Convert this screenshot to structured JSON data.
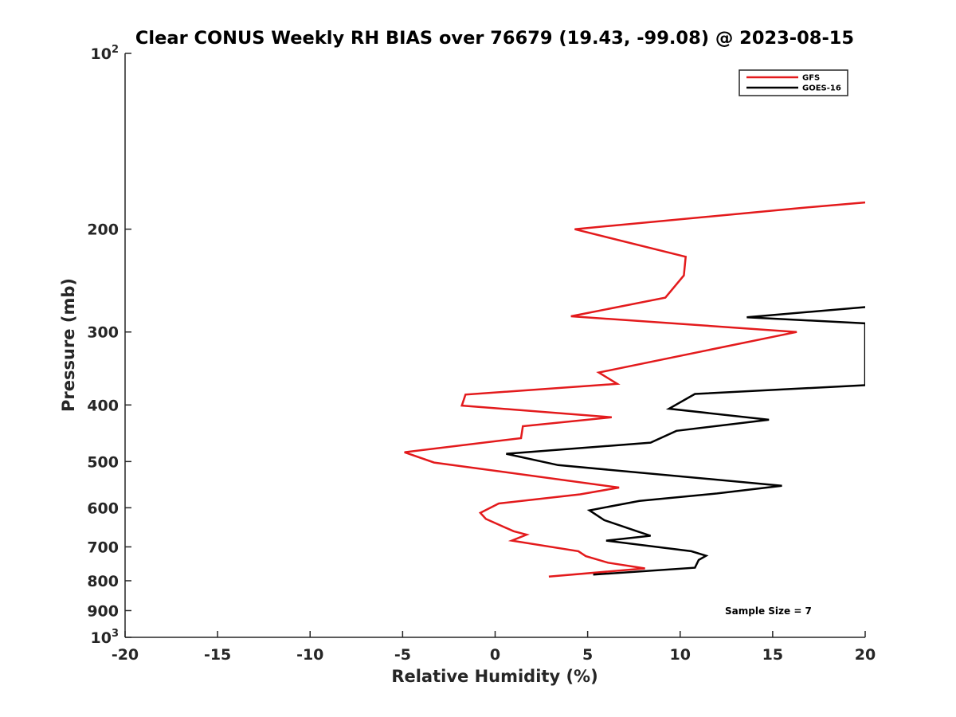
{
  "chart_data": {
    "type": "line",
    "title": "Clear CONUS Weekly RH BIAS over 76679 (19.43, -99.08) @ 2023-08-15",
    "xlabel": "Relative Humidity (%)",
    "ylabel": "Pressure (mb)",
    "xlim": [
      -20,
      20
    ],
    "ylim": [
      100,
      1000
    ],
    "y_scale": "log",
    "y_reversed": true,
    "grid": false,
    "legend_position": "top-right",
    "x_ticks": [
      "-20",
      "-15",
      "-10",
      "-5",
      "0",
      "5",
      "10",
      "15",
      "20"
    ],
    "y_ticks": [
      {
        "value": 100,
        "base": "10",
        "exp": "2"
      },
      {
        "value": 200,
        "label": "200"
      },
      {
        "value": 300,
        "label": "300"
      },
      {
        "value": 400,
        "label": "400"
      },
      {
        "value": 500,
        "label": "500"
      },
      {
        "value": 600,
        "label": "600"
      },
      {
        "value": 700,
        "label": "700"
      },
      {
        "value": 800,
        "label": "800"
      },
      {
        "value": 900,
        "label": "900"
      },
      {
        "value": 1000,
        "base": "10",
        "exp": "3"
      }
    ],
    "annotation": "Sample Size = 7",
    "series": [
      {
        "name": "GFS",
        "color": "#e31a1c",
        "points": [
          [
            20,
            180
          ],
          [
            16.5,
            184
          ],
          [
            4.3,
            200
          ],
          [
            10.3,
            223
          ],
          [
            10.2,
            240
          ],
          [
            9.2,
            262
          ],
          [
            4.1,
            282
          ],
          [
            16.3,
            300
          ],
          [
            5.6,
            352
          ],
          [
            6.6,
            368
          ],
          [
            -1.6,
            384
          ],
          [
            -1.8,
            401
          ],
          [
            6.3,
            420
          ],
          [
            1.5,
            435
          ],
          [
            1.4,
            456
          ],
          [
            -4.9,
            482
          ],
          [
            -3.3,
            502
          ],
          [
            6.7,
            554
          ],
          [
            4.6,
            569
          ],
          [
            0.2,
            590
          ],
          [
            -0.8,
            612
          ],
          [
            -0.5,
            627
          ],
          [
            1.0,
            658
          ],
          [
            1.7,
            667
          ],
          [
            0.9,
            683
          ],
          [
            4.5,
            712
          ],
          [
            4.9,
            726
          ],
          [
            6.1,
            745
          ],
          [
            8.1,
            762
          ],
          [
            2.9,
            787
          ]
        ]
      },
      {
        "name": "GOES-16",
        "color": "#000000",
        "points": [
          [
            20,
            272
          ],
          [
            13.6,
            283
          ],
          [
            20,
            290
          ],
          [
            20,
            370
          ],
          [
            10.8,
            383
          ],
          [
            9.4,
            406
          ],
          [
            14.8,
            424
          ],
          [
            9.8,
            443
          ],
          [
            8.4,
            464
          ],
          [
            0.6,
            485
          ],
          [
            3.4,
            507
          ],
          [
            15.5,
            550
          ],
          [
            12.0,
            567
          ],
          [
            7.8,
            584
          ],
          [
            5.1,
            606
          ],
          [
            5.9,
            630
          ],
          [
            7.6,
            657
          ],
          [
            8.4,
            670
          ],
          [
            6.0,
            683
          ],
          [
            10.6,
            712
          ],
          [
            11.4,
            725
          ],
          [
            11.0,
            737
          ],
          [
            10.8,
            760
          ],
          [
            5.3,
            781
          ]
        ]
      }
    ]
  }
}
